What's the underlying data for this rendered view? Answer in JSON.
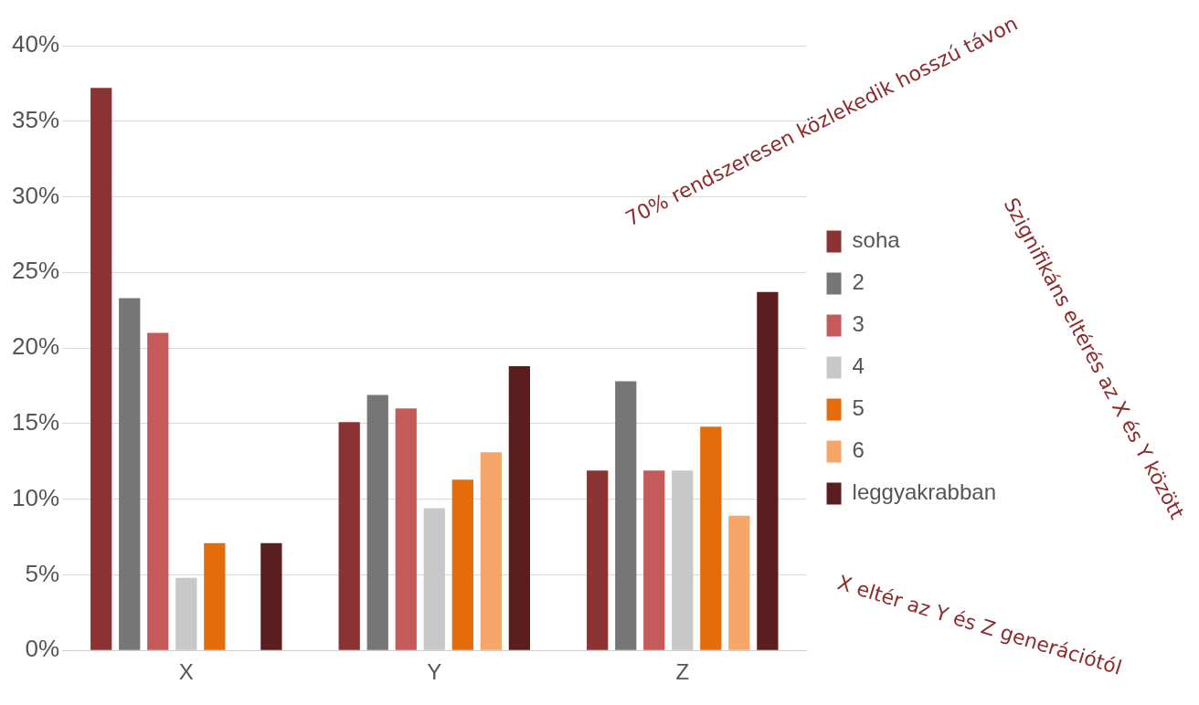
{
  "chart_data": {
    "type": "bar",
    "categories": [
      "X",
      "Y",
      "Z"
    ],
    "series": [
      {
        "name": "soha",
        "color": "#8b3333",
        "values": [
          37.2,
          15.1,
          11.9
        ]
      },
      {
        "name": "2",
        "color": "#767676",
        "values": [
          23.3,
          16.9,
          17.8
        ]
      },
      {
        "name": "3",
        "color": "#c55a5a",
        "values": [
          21.0,
          16.0,
          11.9
        ]
      },
      {
        "name": "4",
        "color": "#c8c8c8",
        "values": [
          4.8,
          9.4,
          11.9
        ]
      },
      {
        "name": "5",
        "color": "#e46c0a",
        "values": [
          7.1,
          11.3,
          14.8
        ]
      },
      {
        "name": "6",
        "color": "#f5a668",
        "values": [
          0,
          13.1,
          8.9
        ]
      },
      {
        "name": "leggyakrabban",
        "color": "#5a1e1e",
        "values": [
          7.1,
          18.8,
          23.7
        ]
      }
    ],
    "ylim": [
      0,
      40
    ],
    "yticks": [
      {
        "value": 0,
        "label": "0%"
      },
      {
        "value": 5,
        "label": "5%"
      },
      {
        "value": 10,
        "label": "10%"
      },
      {
        "value": 15,
        "label": "15%"
      },
      {
        "value": 20,
        "label": "20%"
      },
      {
        "value": 25,
        "label": "25%"
      },
      {
        "value": 30,
        "label": "30%"
      },
      {
        "value": 35,
        "label": "35%"
      },
      {
        "value": 40,
        "label": "40%"
      }
    ],
    "grid": "y",
    "legend": "right",
    "annotations": [
      "70% rendszeresen közlekedik hosszú távon",
      "Szignifikáns eltérés az X és Y között",
      "X eltér az Y és Z generációtól"
    ]
  }
}
